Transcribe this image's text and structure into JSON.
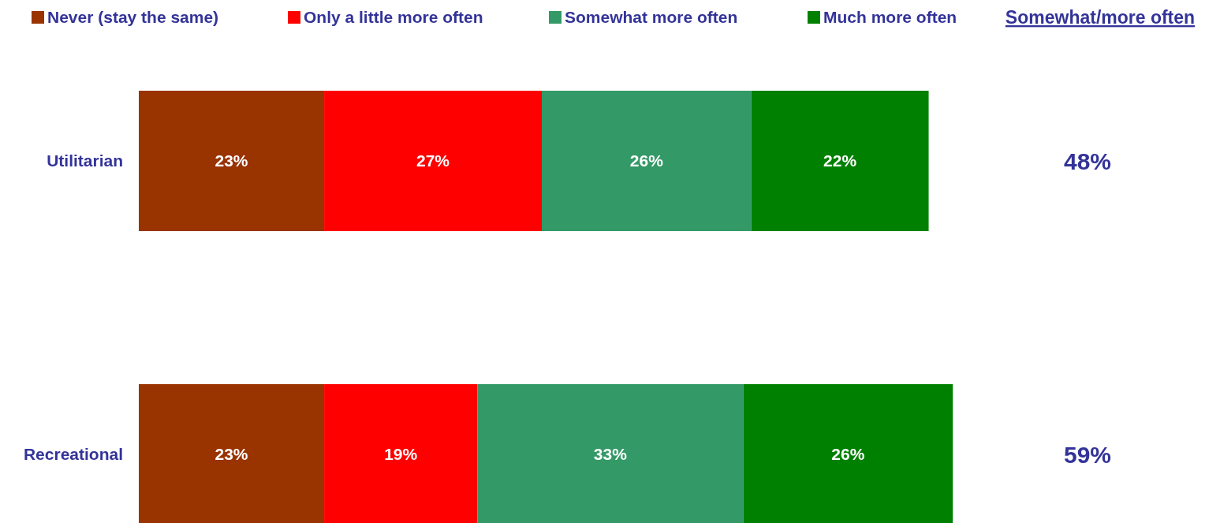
{
  "chart_data": {
    "type": "bar",
    "orientation": "horizontal",
    "stacked": true,
    "categories": [
      "Utilitarian",
      "Recreational"
    ],
    "series": [
      {
        "name": "Never (stay the same)",
        "color": "#993300",
        "values": [
          23,
          23
        ],
        "value_labels": [
          "23%",
          "23%"
        ]
      },
      {
        "name": "Only a little more often",
        "color": "#ff0000",
        "values": [
          27,
          19
        ],
        "value_labels": [
          "27%",
          "19%"
        ]
      },
      {
        "name": "Somewhat more often",
        "color": "#339966",
        "values": [
          26,
          33
        ],
        "value_labels": [
          "26%",
          "33%"
        ]
      },
      {
        "name": "Much more often",
        "color": "#008000",
        "values": [
          22,
          26
        ],
        "value_labels": [
          "22%",
          "26%"
        ]
      }
    ],
    "legend": "top",
    "tick_labels": "y",
    "annotations": [
      "Somewhat/more often",
      "48%",
      "59%"
    ]
  }
}
